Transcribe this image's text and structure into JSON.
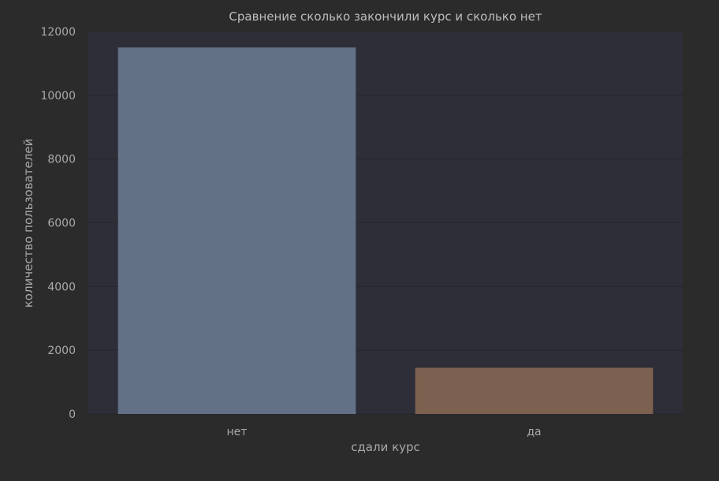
{
  "colors": {
    "background": "#2b2b2b",
    "plot_background": "#2e2e38",
    "grid": "#26262d",
    "text": "#a9a9a9",
    "title_text": "#bdbdbd",
    "bar_colors": [
      "#637187",
      "#7d6150"
    ]
  },
  "chart_data": {
    "type": "bar",
    "title": "Сравнение сколько закончили курс и сколько нет",
    "xlabel": "сдали курс",
    "ylabel": "количество пользователей",
    "categories": [
      "нет",
      "да"
    ],
    "values": [
      11500,
      1450
    ],
    "ylim": [
      0,
      12000
    ],
    "yticks": [
      "0",
      "2000",
      "4000",
      "6000",
      "8000",
      "10000",
      "12000"
    ],
    "grid": true,
    "legend": "none"
  }
}
